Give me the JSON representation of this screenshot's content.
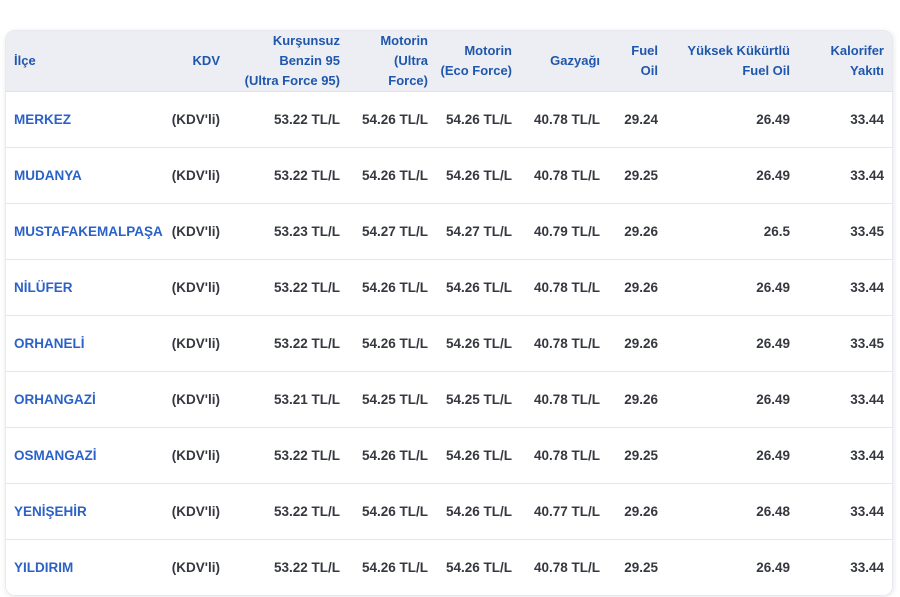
{
  "colors": {
    "header_bg": "#edeef3",
    "header_text": "#1f57ad",
    "district_link": "#2a62c8",
    "value_text": "#35383f",
    "separator": "#e4e6eb",
    "border_color": "#e7e9ee"
  },
  "table": {
    "columns": [
      {
        "key": "ilce",
        "label": "İlçe"
      },
      {
        "key": "kdv",
        "label": "KDV"
      },
      {
        "key": "benzin95",
        "label": "Kurşunsuz\nBenzin 95\n(Ultra Force 95)"
      },
      {
        "key": "motorin_ultra",
        "label": "Motorin\n(Ultra\nForce)"
      },
      {
        "key": "motorin_eco",
        "label": "Motorin\n(Eco Force)"
      },
      {
        "key": "gazyagi",
        "label": "Gazyağı"
      },
      {
        "key": "fuel_oil",
        "label": "Fuel\nOil"
      },
      {
        "key": "yuksek_kukurtlu",
        "label": "Yüksek Kükürtlü\nFuel Oil"
      },
      {
        "key": "kalorifer",
        "label": "Kalorifer\nYakıtı"
      }
    ],
    "rows": [
      {
        "ilce": "MERKEZ",
        "kdv": "(KDV'li)",
        "benzin95": "53.22 TL/L",
        "motorin_ultra": "54.26 TL/L",
        "motorin_eco": "54.26 TL/L",
        "gazyagi": "40.78 TL/L",
        "fuel_oil": "29.24",
        "yuksek_kukurtlu": "26.49",
        "kalorifer": "33.44"
      },
      {
        "ilce": "MUDANYA",
        "kdv": "(KDV'li)",
        "benzin95": "53.22 TL/L",
        "motorin_ultra": "54.26 TL/L",
        "motorin_eco": "54.26 TL/L",
        "gazyagi": "40.78 TL/L",
        "fuel_oil": "29.25",
        "yuksek_kukurtlu": "26.49",
        "kalorifer": "33.44"
      },
      {
        "ilce": "MUSTAFAKEMALPAŞA",
        "kdv": "(KDV'li)",
        "benzin95": "53.23 TL/L",
        "motorin_ultra": "54.27 TL/L",
        "motorin_eco": "54.27 TL/L",
        "gazyagi": "40.79 TL/L",
        "fuel_oil": "29.26",
        "yuksek_kukurtlu": "26.5",
        "kalorifer": "33.45"
      },
      {
        "ilce": "NİLÜFER",
        "kdv": "(KDV'li)",
        "benzin95": "53.22 TL/L",
        "motorin_ultra": "54.26 TL/L",
        "motorin_eco": "54.26 TL/L",
        "gazyagi": "40.78 TL/L",
        "fuel_oil": "29.26",
        "yuksek_kukurtlu": "26.49",
        "kalorifer": "33.44"
      },
      {
        "ilce": "ORHANELİ",
        "kdv": "(KDV'li)",
        "benzin95": "53.22 TL/L",
        "motorin_ultra": "54.26 TL/L",
        "motorin_eco": "54.26 TL/L",
        "gazyagi": "40.78 TL/L",
        "fuel_oil": "29.26",
        "yuksek_kukurtlu": "26.49",
        "kalorifer": "33.45"
      },
      {
        "ilce": "ORHANGAZİ",
        "kdv": "(KDV'li)",
        "benzin95": "53.21 TL/L",
        "motorin_ultra": "54.25 TL/L",
        "motorin_eco": "54.25 TL/L",
        "gazyagi": "40.78 TL/L",
        "fuel_oil": "29.26",
        "yuksek_kukurtlu": "26.49",
        "kalorifer": "33.44"
      },
      {
        "ilce": "OSMANGAZİ",
        "kdv": "(KDV'li)",
        "benzin95": "53.22 TL/L",
        "motorin_ultra": "54.26 TL/L",
        "motorin_eco": "54.26 TL/L",
        "gazyagi": "40.78 TL/L",
        "fuel_oil": "29.25",
        "yuksek_kukurtlu": "26.49",
        "kalorifer": "33.44"
      },
      {
        "ilce": "YENİŞEHİR",
        "kdv": "(KDV'li)",
        "benzin95": "53.22 TL/L",
        "motorin_ultra": "54.26 TL/L",
        "motorin_eco": "54.26 TL/L",
        "gazyagi": "40.77 TL/L",
        "fuel_oil": "29.26",
        "yuksek_kukurtlu": "26.48",
        "kalorifer": "33.44"
      },
      {
        "ilce": "YILDIRIM",
        "kdv": "(KDV'li)",
        "benzin95": "53.22 TL/L",
        "motorin_ultra": "54.26 TL/L",
        "motorin_eco": "54.26 TL/L",
        "gazyagi": "40.78 TL/L",
        "fuel_oil": "29.25",
        "yuksek_kukurtlu": "26.49",
        "kalorifer": "33.44"
      }
    ]
  }
}
